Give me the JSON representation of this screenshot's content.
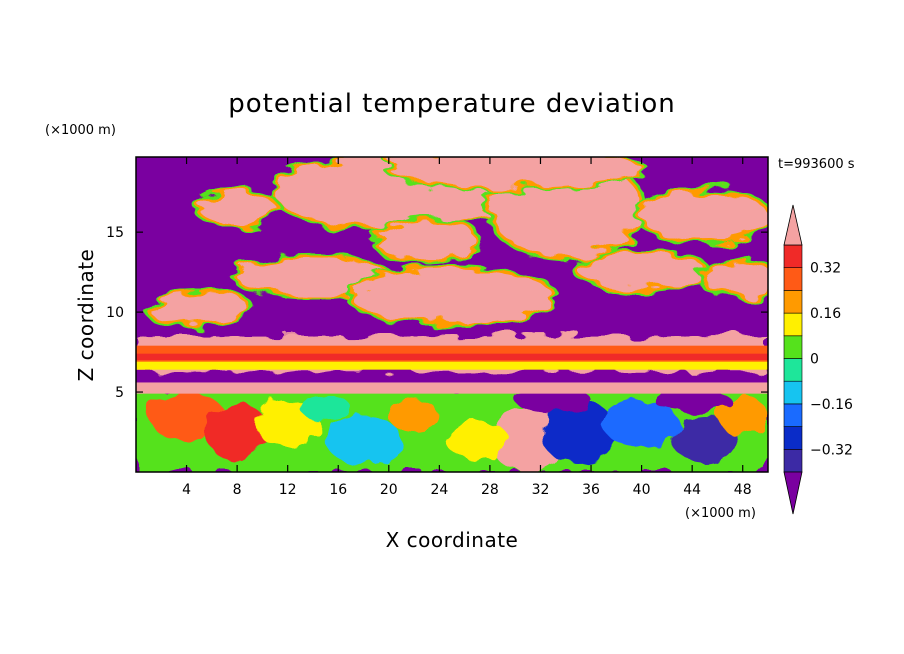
{
  "chart_data": {
    "type": "heatmap",
    "title": "potential temperature deviation",
    "xlabel": "X coordinate",
    "ylabel": "Z coordinate",
    "x_units": "(×1000 m)",
    "y_units": "(×1000 m)",
    "time_label": "t=993600 s",
    "xlim": [
      0,
      50
    ],
    "ylim": [
      0,
      19.7
    ],
    "x_ticks": [
      4,
      8,
      12,
      16,
      20,
      24,
      28,
      32,
      36,
      40,
      44,
      48
    ],
    "y_ticks": [
      5,
      10,
      15
    ],
    "colorbar": {
      "levels": [
        -0.4,
        -0.32,
        -0.24,
        -0.16,
        -0.08,
        0,
        0.08,
        0.16,
        0.24,
        0.32,
        0.4
      ],
      "labels": [
        "0.32",
        "0.16",
        "0",
        "−0.16",
        "−0.32"
      ],
      "label_values": [
        0.32,
        0.16,
        0,
        -0.16,
        -0.32
      ],
      "colors": [
        "#7a00a0",
        "#3c2aa5",
        "#0a2cc8",
        "#1a6bff",
        "#16c4f0",
        "#1ee69a",
        "#55e21c",
        "#fff000",
        "#ff9a00",
        "#ff5a16",
        "#f02a28",
        "#f4a2a2"
      ],
      "extend": "both"
    },
    "grid": false,
    "bands": [
      {
        "z": [
          19.7,
          6.5
        ],
        "description_value": "upper layer mixed, values mostly below -0.4 and above 0.4"
      },
      {
        "z": [
          6.5,
          7.8
        ],
        "value": 0.36
      },
      {
        "z": [
          0,
          5.2
        ],
        "value_range": [
          -0.4,
          0.4
        ]
      }
    ]
  }
}
